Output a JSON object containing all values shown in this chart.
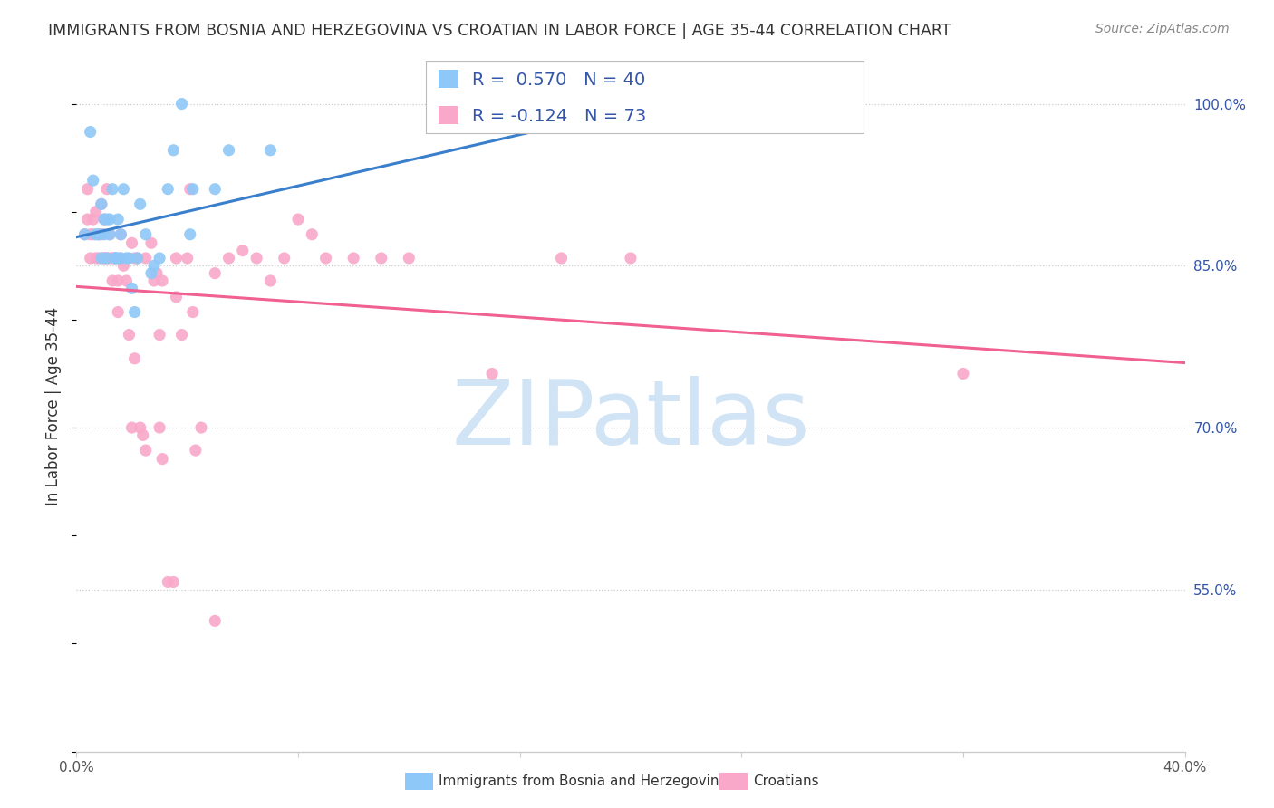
{
  "title": "IMMIGRANTS FROM BOSNIA AND HERZEGOVINA VS CROATIAN IN LABOR FORCE | AGE 35-44 CORRELATION CHART",
  "source": "Source: ZipAtlas.com",
  "ylabel": "In Labor Force | Age 35-44",
  "xlim": [
    0.0,
    0.4
  ],
  "ylim": [
    0.4,
    1.04
  ],
  "yticks": [
    0.55,
    0.7,
    0.85,
    1.0
  ],
  "ytick_labels": [
    "55.0%",
    "70.0%",
    "85.0%",
    "100.0%"
  ],
  "xticks": [
    0.0,
    0.08,
    0.16,
    0.24,
    0.32,
    0.4
  ],
  "xtick_labels": [
    "0.0%",
    "",
    "",
    "",
    "",
    "40.0%"
  ],
  "r_bosnia": 0.57,
  "n_bosnia": 40,
  "r_croatian": -0.124,
  "n_croatian": 73,
  "bosnia_color": "#8EC8F8",
  "croatian_color": "#F9A8C9",
  "line_bosnia_color": "#3A7FCC",
  "line_croatian_color": "#F06090",
  "legend_text_color": "#3355AA",
  "watermark_text": "ZIPatlas",
  "watermark_color": "#D0E4F5",
  "bosnia_points": [
    [
      0.003,
      0.879
    ],
    [
      0.005,
      0.974
    ],
    [
      0.006,
      0.929
    ],
    [
      0.007,
      0.879
    ],
    [
      0.008,
      0.879
    ],
    [
      0.009,
      0.857
    ],
    [
      0.009,
      0.907
    ],
    [
      0.01,
      0.893
    ],
    [
      0.01,
      0.879
    ],
    [
      0.011,
      0.857
    ],
    [
      0.011,
      0.893
    ],
    [
      0.012,
      0.893
    ],
    [
      0.012,
      0.879
    ],
    [
      0.013,
      0.921
    ],
    [
      0.014,
      0.857
    ],
    [
      0.014,
      0.857
    ],
    [
      0.015,
      0.857
    ],
    [
      0.015,
      0.893
    ],
    [
      0.016,
      0.857
    ],
    [
      0.016,
      0.879
    ],
    [
      0.017,
      0.921
    ],
    [
      0.018,
      0.857
    ],
    [
      0.019,
      0.857
    ],
    [
      0.02,
      0.829
    ],
    [
      0.021,
      0.807
    ],
    [
      0.022,
      0.857
    ],
    [
      0.023,
      0.907
    ],
    [
      0.025,
      0.879
    ],
    [
      0.027,
      0.843
    ],
    [
      0.028,
      0.85
    ],
    [
      0.03,
      0.857
    ],
    [
      0.033,
      0.921
    ],
    [
      0.035,
      0.957
    ],
    [
      0.038,
      1.0
    ],
    [
      0.041,
      0.879
    ],
    [
      0.042,
      0.921
    ],
    [
      0.05,
      0.921
    ],
    [
      0.055,
      0.957
    ],
    [
      0.07,
      0.957
    ],
    [
      0.24,
      1.0
    ]
  ],
  "croatian_points": [
    [
      0.003,
      0.879
    ],
    [
      0.004,
      0.921
    ],
    [
      0.004,
      0.893
    ],
    [
      0.005,
      0.879
    ],
    [
      0.005,
      0.857
    ],
    [
      0.006,
      0.879
    ],
    [
      0.006,
      0.893
    ],
    [
      0.007,
      0.9
    ],
    [
      0.007,
      0.857
    ],
    [
      0.008,
      0.879
    ],
    [
      0.008,
      0.857
    ],
    [
      0.009,
      0.907
    ],
    [
      0.009,
      0.879
    ],
    [
      0.01,
      0.857
    ],
    [
      0.01,
      0.893
    ],
    [
      0.01,
      0.857
    ],
    [
      0.011,
      0.921
    ],
    [
      0.011,
      0.857
    ],
    [
      0.012,
      0.857
    ],
    [
      0.012,
      0.879
    ],
    [
      0.013,
      0.857
    ],
    [
      0.013,
      0.836
    ],
    [
      0.014,
      0.857
    ],
    [
      0.015,
      0.836
    ],
    [
      0.015,
      0.807
    ],
    [
      0.016,
      0.879
    ],
    [
      0.016,
      0.857
    ],
    [
      0.017,
      0.85
    ],
    [
      0.018,
      0.836
    ],
    [
      0.019,
      0.786
    ],
    [
      0.02,
      0.7
    ],
    [
      0.02,
      0.871
    ],
    [
      0.021,
      0.857
    ],
    [
      0.021,
      0.764
    ],
    [
      0.022,
      0.857
    ],
    [
      0.023,
      0.7
    ],
    [
      0.024,
      0.693
    ],
    [
      0.025,
      0.679
    ],
    [
      0.025,
      0.857
    ],
    [
      0.027,
      0.871
    ],
    [
      0.028,
      0.836
    ],
    [
      0.029,
      0.843
    ],
    [
      0.03,
      0.786
    ],
    [
      0.03,
      0.7
    ],
    [
      0.031,
      0.671
    ],
    [
      0.031,
      0.836
    ],
    [
      0.033,
      0.557
    ],
    [
      0.035,
      0.557
    ],
    [
      0.036,
      0.857
    ],
    [
      0.036,
      0.821
    ],
    [
      0.038,
      0.786
    ],
    [
      0.04,
      0.857
    ],
    [
      0.041,
      0.921
    ],
    [
      0.042,
      0.807
    ],
    [
      0.043,
      0.679
    ],
    [
      0.045,
      0.7
    ],
    [
      0.05,
      0.843
    ],
    [
      0.05,
      0.521
    ],
    [
      0.055,
      0.857
    ],
    [
      0.06,
      0.864
    ],
    [
      0.065,
      0.857
    ],
    [
      0.07,
      0.836
    ],
    [
      0.075,
      0.857
    ],
    [
      0.08,
      0.893
    ],
    [
      0.085,
      0.879
    ],
    [
      0.09,
      0.857
    ],
    [
      0.1,
      0.857
    ],
    [
      0.11,
      0.857
    ],
    [
      0.12,
      0.857
    ],
    [
      0.15,
      0.75
    ],
    [
      0.175,
      0.857
    ],
    [
      0.2,
      0.857
    ],
    [
      0.32,
      0.75
    ]
  ]
}
